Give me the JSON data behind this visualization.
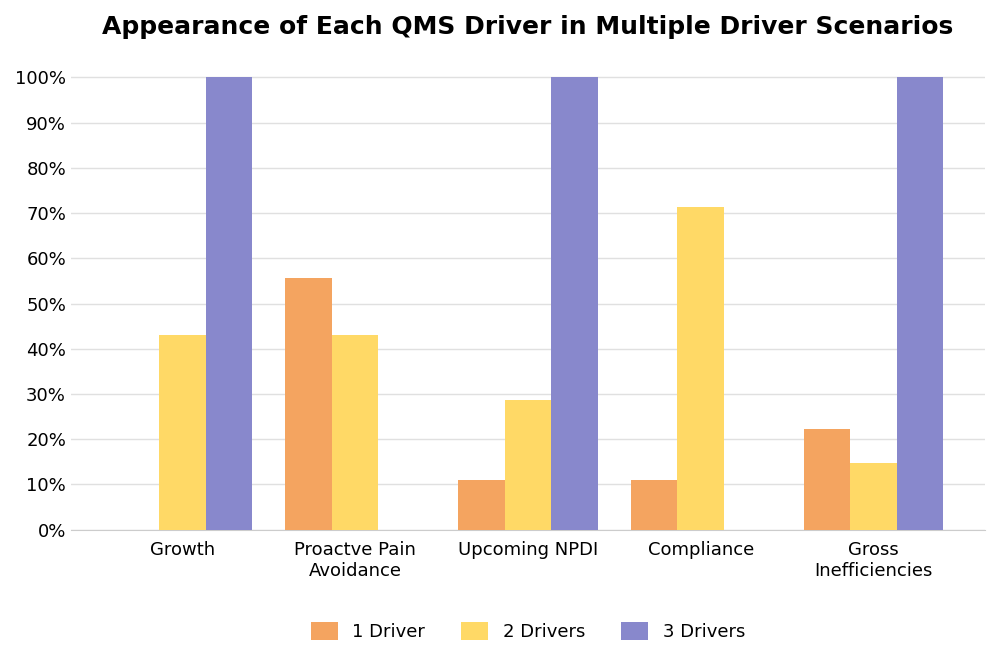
{
  "title": "Appearance of Each QMS Driver in Multiple Driver Scenarios",
  "categories": [
    "Growth",
    "Proactve Pain\nAvoidance",
    "Upcoming NPDI",
    "Compliance",
    "Gross\nInefficiencies"
  ],
  "series": {
    "1 Driver": [
      0,
      0.556,
      0.111,
      0.111,
      0.222
    ],
    "2 Drivers": [
      0.431,
      0.431,
      0.286,
      0.714,
      0.147
    ],
    "3 Drivers": [
      1.0,
      0,
      1.0,
      0,
      1.0
    ]
  },
  "colors": {
    "1 Driver": "#F4A460",
    "2 Drivers": "#FFD966",
    "3 Drivers": "#8888CC"
  },
  "legend_labels": [
    "1 Driver",
    "2 Drivers",
    "3 Drivers"
  ],
  "ylim": [
    0,
    1.05
  ],
  "yticks": [
    0,
    0.1,
    0.2,
    0.3,
    0.4,
    0.5,
    0.6,
    0.7,
    0.8,
    0.9,
    1.0
  ],
  "yticklabels": [
    "0%",
    "10%",
    "20%",
    "30%",
    "40%",
    "50%",
    "60%",
    "70%",
    "80%",
    "90%",
    "100%"
  ],
  "background_color": "#FFFFFF",
  "grid_color": "#E0E0E0",
  "title_fontsize": 18,
  "tick_fontsize": 13,
  "legend_fontsize": 13,
  "bar_width": 0.27,
  "group_width": 0.81
}
